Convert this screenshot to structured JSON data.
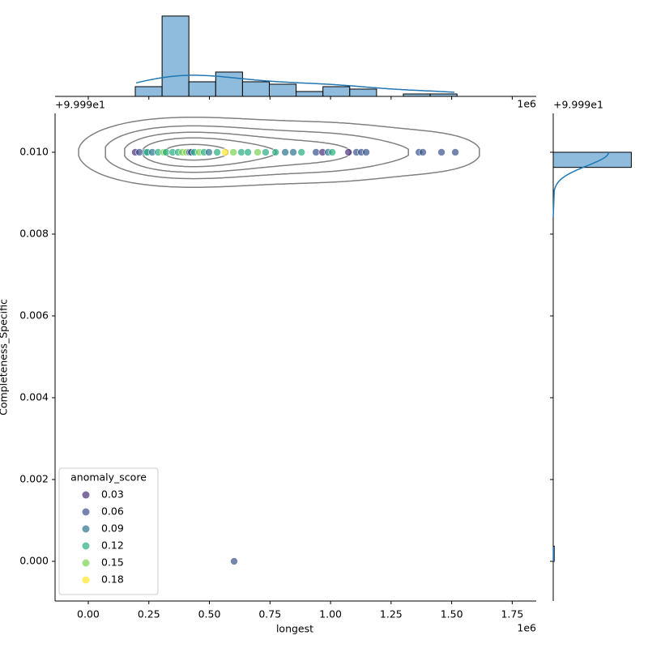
{
  "chart_data": {
    "type": "joint",
    "x_label": "longest",
    "y_label": "Completeness_Specific",
    "x_offset_label": "1e6",
    "y_offset_label": "+9.999e1",
    "xlim": [
      -0.137,
      1.849
    ],
    "ylim": [
      -0.00097,
      0.01095
    ],
    "xticks": [
      {
        "value": 0,
        "label": "0.00"
      },
      0.25,
      {
        "value": 0.5,
        "label": "0.50"
      },
      0.75,
      {
        "value": 1,
        "label": "1.00"
      },
      1.25,
      {
        "value": 1.5,
        "label": "1.50"
      },
      1.75
    ],
    "yticks": [
      {
        "value": 0,
        "label": "0.000"
      },
      0.002,
      0.004,
      0.006,
      0.008,
      {
        "value": 0.01,
        "label": "0.010"
      }
    ],
    "hue_name": "anomaly_score",
    "legend": {
      "corner": "lower left",
      "entries": [
        {
          "name": "0.03",
          "value": 0.03,
          "color": "#472d7b"
        },
        {
          "name": "0.06",
          "value": 0.06,
          "color": "#3b528b"
        },
        {
          "name": "0.09",
          "value": 0.09,
          "color": "#2c728e"
        },
        {
          "name": "0.12",
          "value": 0.12,
          "color": "#28ae80"
        },
        {
          "name": "0.15",
          "value": 0.15,
          "color": "#7ad151"
        },
        {
          "name": "0.18",
          "value": 0.18,
          "color": "#fde725"
        }
      ]
    },
    "points": {
      "x": [
        0.194,
        0.211,
        0.237,
        0.244,
        0.264,
        0.288,
        0.311,
        0.321,
        0.348,
        0.371,
        0.388,
        0.405,
        0.418,
        0.425,
        0.438,
        0.458,
        0.478,
        0.498,
        0.532,
        0.565,
        0.599,
        0.632,
        0.659,
        0.699,
        0.732,
        0.773,
        0.813,
        0.846,
        0.88,
        0.94,
        0.967,
        0.99,
        1.007,
        1.074,
        1.107,
        1.127,
        1.147,
        1.365,
        1.381,
        1.458,
        1.515,
        0.602
      ],
      "y": [
        0.01,
        0.01,
        0.01,
        0.01,
        0.01,
        0.01,
        0.01,
        0.01,
        0.01,
        0.01,
        0.01,
        0.01,
        0.01,
        0.01,
        0.01,
        0.01,
        0.01,
        0.01,
        0.01,
        0.01,
        0.01,
        0.01,
        0.01,
        0.01,
        0.01,
        0.01,
        0.01,
        0.01,
        0.01,
        0.01,
        0.01,
        0.01,
        0.01,
        0.01,
        0.01,
        0.01,
        0.01,
        0.01,
        0.01,
        0.01,
        0.01,
        0
      ],
      "hue": [
        0.03,
        0.06,
        0.09,
        0.12,
        0.09,
        0.12,
        0.15,
        0.12,
        0.12,
        0.12,
        0.15,
        0.15,
        0.06,
        0.06,
        0.12,
        0.15,
        0.12,
        0.09,
        0.12,
        0.18,
        0.15,
        0.12,
        0.12,
        0.15,
        0.12,
        0.12,
        0.09,
        0.09,
        0.12,
        0.06,
        0.03,
        0.09,
        0.12,
        0.03,
        0.06,
        0.06,
        0.06,
        0.06,
        0.06,
        0.06,
        0.06,
        0.06
      ]
    },
    "x_hist": {
      "color": "#8fbcdc",
      "bins": [
        0.194,
        0.3047,
        0.4153,
        0.526,
        0.6367,
        0.7473,
        0.858,
        0.9687,
        1.0793,
        1.19,
        1.3007,
        1.4113,
        1.522
      ],
      "counts": [
        4,
        33,
        6,
        10,
        6,
        5,
        2,
        4,
        3,
        0,
        1,
        1
      ],
      "ylim": [
        0,
        34.6
      ]
    },
    "y_hist": {
      "color": "#8fbcdc",
      "bins": [
        0,
        0.00037,
        0.00074,
        0.00111,
        0.00148,
        0.00185,
        0.00222,
        0.00259,
        0.00296,
        0.00333,
        0.0037,
        0.00407,
        0.00444,
        0.00481,
        0.00519,
        0.00556,
        0.00593,
        0.0063,
        0.00667,
        0.00704,
        0.00741,
        0.00778,
        0.00815,
        0.00852,
        0.00889,
        0.00926,
        0.00963,
        0.01
      ],
      "counts": [
        1,
        0,
        0,
        0,
        0,
        0,
        0,
        0,
        0,
        0,
        0,
        0,
        0,
        0,
        0,
        0,
        0,
        0,
        0,
        0,
        0,
        0,
        0,
        0,
        0,
        0,
        74
      ],
      "xlim": [
        0,
        76
      ]
    },
    "kde_color": "#1f77b4",
    "contour_color": "#808080"
  }
}
